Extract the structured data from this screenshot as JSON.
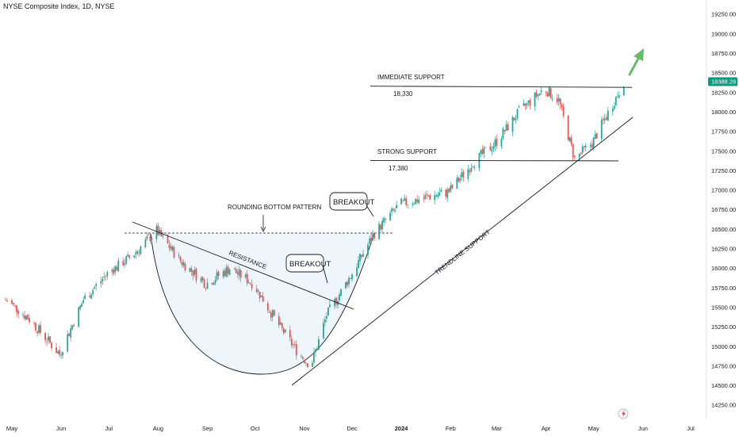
{
  "header": {
    "title": "NYSE Composite Index, 1D, NYSE"
  },
  "colors": {
    "up": "#26a69a",
    "down": "#ef5350",
    "line": "#131722",
    "fill": "#eef6fc",
    "price_tag": "#089981",
    "arrow": "#66bb6a"
  },
  "chart_data": {
    "type": "candlestick",
    "title": "NYSE Composite Index, 1D, NYSE",
    "x_axis": {
      "ticks": [
        "May",
        "Jun",
        "Jul",
        "Aug",
        "Sep",
        "Oct",
        "Nov",
        "Dec",
        "2024",
        "Feb",
        "Mar",
        "Apr",
        "May",
        "Jun",
        "Jul"
      ],
      "tick_values": [
        "2023-05-01",
        "2023-06-01",
        "2023-07-01",
        "2023-08-01",
        "2023-09-01",
        "2023-10-01",
        "2023-11-01",
        "2023-12-01",
        "2024-01-01",
        "2024-02-01",
        "2024-03-01",
        "2024-04-01",
        "2024-05-01",
        "2024-06-01",
        "2024-07-01"
      ]
    },
    "y_axis": {
      "range": [
        14250,
        19250
      ],
      "ticks": [
        "19250.00",
        "19000.00",
        "18750.00",
        "18500.00",
        "18250.00",
        "18000.00",
        "17750.00",
        "17500.00",
        "17250.00",
        "17000.00",
        "16750.00",
        "16500.00",
        "16250.00",
        "16000.00",
        "15750.00",
        "15500.00",
        "15250.00",
        "15000.00",
        "14750.00",
        "14500.00",
        "14250.00"
      ]
    },
    "last_price": "18388.26",
    "series_path": [
      [
        "2023-04-27",
        15600
      ],
      [
        "2023-05-12",
        15350
      ],
      [
        "2023-05-31",
        14900
      ],
      [
        "2023-06-15",
        15600
      ],
      [
        "2023-07-01",
        15950
      ],
      [
        "2023-07-15",
        16150
      ],
      [
        "2023-07-31",
        16480
      ],
      [
        "2023-08-15",
        16100
      ],
      [
        "2023-08-31",
        15800
      ],
      [
        "2023-09-15",
        16000
      ],
      [
        "2023-09-30",
        15800
      ],
      [
        "2023-10-15",
        15300
      ],
      [
        "2023-10-27",
        14950
      ],
      [
        "2023-11-05",
        14750
      ],
      [
        "2023-11-15",
        15400
      ],
      [
        "2023-11-30",
        15900
      ],
      [
        "2023-12-15",
        16450
      ],
      [
        "2023-12-31",
        16820
      ],
      [
        "2024-01-15",
        16900
      ],
      [
        "2024-01-31",
        16980
      ],
      [
        "2024-02-15",
        17350
      ],
      [
        "2024-02-29",
        17600
      ],
      [
        "2024-03-15",
        18000
      ],
      [
        "2024-03-31",
        18300
      ],
      [
        "2024-04-09",
        18150
      ],
      [
        "2024-04-19",
        17400
      ],
      [
        "2024-04-30",
        17600
      ],
      [
        "2024-05-15",
        18180
      ],
      [
        "2024-05-20",
        18388
      ]
    ],
    "annotations": {
      "immediate_support": {
        "label": "IMMEDIATE SUPPORT",
        "value_label": "18,330",
        "value": 18330
      },
      "strong_support": {
        "label": "STRONG SUPPORT",
        "value_label": "17,380",
        "value": 17380
      },
      "rounding_bottom": {
        "label": "ROUNDING BOTTOM PATTERN"
      },
      "resistance": {
        "label": "RESISTANCE"
      },
      "trendline": {
        "label": "TRENDLINE SUPPORT"
      },
      "breakouts": [
        "BREAKOUT",
        "BREAKOUT"
      ]
    }
  }
}
